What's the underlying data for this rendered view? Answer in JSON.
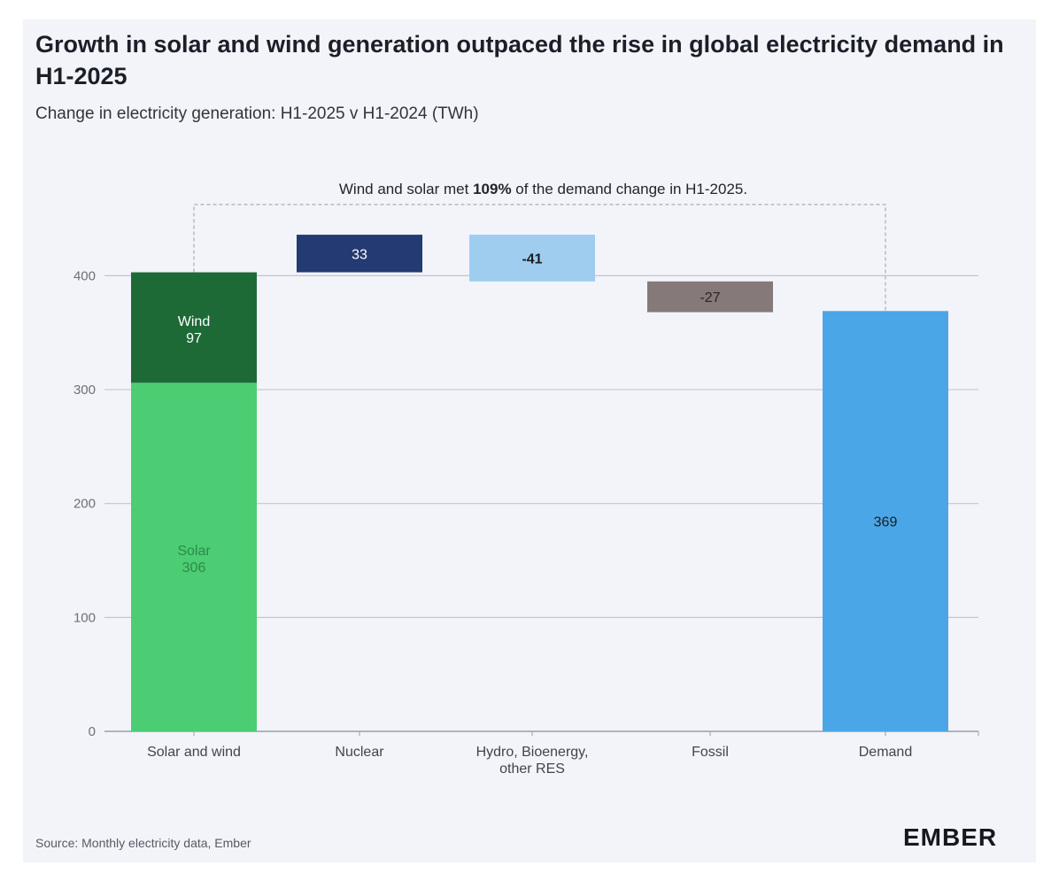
{
  "title": "Growth in solar and wind generation outpaced the rise in global electricity demand in H1-2025",
  "subtitle": "Change in electricity generation: H1-2025 v H1-2024 (TWh)",
  "source": "Source: Monthly electricity data, Ember",
  "logo_text": "EMBER",
  "annotation": {
    "prefix": "Wind and solar met ",
    "bold": "109%",
    "suffix": " of the demand change in H1-2025."
  },
  "chart_data": {
    "type": "bar",
    "subtype": "waterfall",
    "title": "Growth in solar and wind generation outpaced the rise in global electricity demand in H1-2025",
    "subtitle": "Change in electricity generation: H1-2025 v H1-2024 (TWh)",
    "xlabel": "",
    "ylabel": "",
    "ylim": [
      0,
      450
    ],
    "yticks": [
      0,
      100,
      200,
      300,
      400
    ],
    "grid": true,
    "legend": "none",
    "categories": [
      [
        "Solar and wind"
      ],
      [
        "Nuclear"
      ],
      [
        "Hydro, Bioenergy,",
        "other RES"
      ],
      [
        "Fossil"
      ],
      [
        "Demand"
      ]
    ],
    "segments": [
      {
        "category": 0,
        "label": "Solar",
        "value": 306,
        "base": 0,
        "color": "#4ccd73",
        "text_color": "#2e8a4a"
      },
      {
        "category": 0,
        "label": "Wind",
        "value": 97,
        "base": 306,
        "color": "#1e6a36",
        "text_color": "#ffffff"
      },
      {
        "category": 1,
        "label": "",
        "value": 33,
        "base": 403,
        "color": "#233a73",
        "text_color": "#ffffff"
      },
      {
        "category": 2,
        "label": "",
        "value": -41,
        "base": 436,
        "color": "#9fcdef",
        "text_color": "#1a1d24",
        "bold": true
      },
      {
        "category": 3,
        "label": "",
        "value": -27,
        "base": 395,
        "color": "#86797a",
        "text_color": "#2a2526"
      },
      {
        "category": 4,
        "label": "",
        "value": 369,
        "base": 0,
        "color": "#4aa6e7",
        "text_color": "#1a1d24"
      }
    ]
  }
}
